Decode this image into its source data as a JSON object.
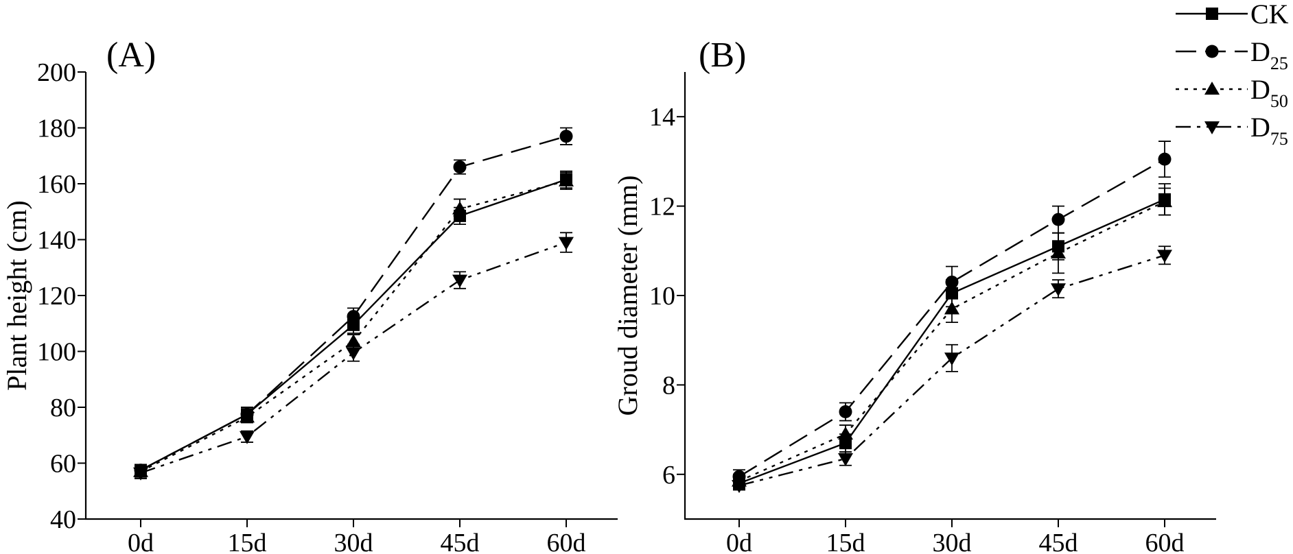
{
  "chart_data": [
    {
      "type": "line",
      "panel_label": "(A)",
      "title": "",
      "xlabel": "",
      "ylabel": "Plant height (cm)",
      "categories": [
        "0d",
        "15d",
        "30d",
        "45d",
        "60d"
      ],
      "ylim": [
        40,
        200
      ],
      "yticks": [
        40,
        60,
        80,
        100,
        120,
        140,
        160,
        180,
        200
      ],
      "yticklabels": [
        "40",
        "60",
        "80",
        "100",
        "120",
        "140",
        "160",
        "180",
        "200"
      ],
      "grid": false,
      "series": [
        {
          "name": "CK",
          "values": [
            57.5,
            77.5,
            109.5,
            148.5,
            161.5
          ],
          "errors": [
            2.0,
            2.5,
            3.0,
            3.0,
            3.0
          ]
        },
        {
          "name": "D25",
          "values": [
            57.5,
            77.5,
            112.5,
            166.0,
            177.0
          ],
          "errors": [
            2.0,
            2.5,
            3.0,
            2.5,
            3.0
          ]
        },
        {
          "name": "D50",
          "values": [
            57.0,
            76.5,
            103.5,
            151.0,
            161.0
          ],
          "errors": [
            2.0,
            2.0,
            2.5,
            3.5,
            3.0
          ]
        },
        {
          "name": "D75",
          "values": [
            56.5,
            69.5,
            99.5,
            125.5,
            139.0
          ],
          "errors": [
            2.0,
            2.0,
            3.0,
            3.0,
            3.5
          ]
        }
      ]
    },
    {
      "type": "line",
      "panel_label": "(B)",
      "title": "",
      "xlabel": "",
      "ylabel": "Groud diameter (mm)",
      "categories": [
        "0d",
        "15d",
        "30d",
        "45d",
        "60d"
      ],
      "ylim": [
        5,
        15
      ],
      "yticks": [
        6,
        8,
        10,
        12,
        14
      ],
      "yticklabels": [
        "6",
        "8",
        "10",
        "12",
        "14"
      ],
      "grid": false,
      "series": [
        {
          "name": "CK",
          "values": [
            5.8,
            6.7,
            10.05,
            11.1,
            12.15
          ],
          "errors": [
            0.15,
            0.2,
            0.3,
            0.3,
            0.35
          ]
        },
        {
          "name": "D25",
          "values": [
            5.95,
            7.4,
            10.3,
            11.7,
            13.05
          ],
          "errors": [
            0.15,
            0.2,
            0.35,
            0.3,
            0.4
          ]
        },
        {
          "name": "D50",
          "values": [
            5.85,
            6.9,
            9.7,
            10.95,
            12.1
          ],
          "errors": [
            0.15,
            0.2,
            0.3,
            0.45,
            0.3
          ]
        },
        {
          "name": "D75",
          "values": [
            5.75,
            6.35,
            8.6,
            10.15,
            10.9
          ],
          "errors": [
            0.1,
            0.15,
            0.3,
            0.2,
            0.2
          ]
        }
      ]
    }
  ],
  "legend": {
    "placement": "top-right",
    "entries": [
      {
        "base": "CK",
        "sub": ""
      },
      {
        "base": "D",
        "sub": "25"
      },
      {
        "base": "D",
        "sub": "50"
      },
      {
        "base": "D",
        "sub": "75"
      }
    ]
  }
}
